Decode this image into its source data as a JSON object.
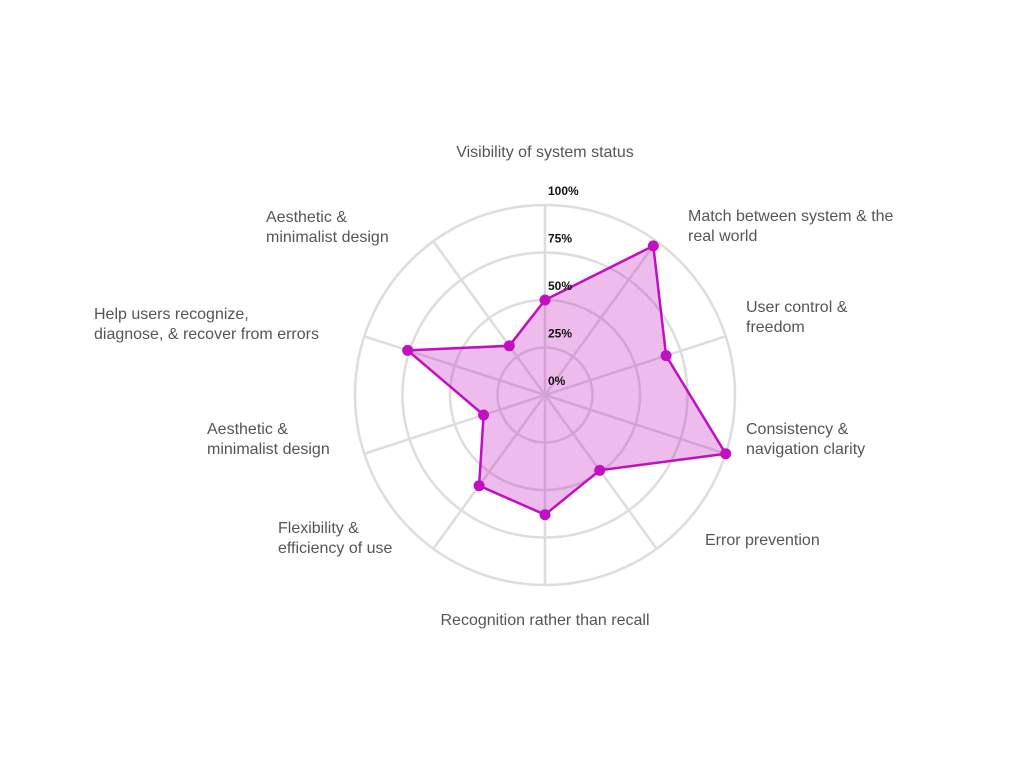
{
  "chart_data": {
    "type": "radar",
    "categories": [
      [
        "Visibility of system status"
      ],
      [
        "Match between system & the",
        "real world"
      ],
      [
        "User control &",
        "freedom"
      ],
      [
        "Consistency &",
        "navigation clarity"
      ],
      [
        "Error prevention"
      ],
      [
        "Recognition rather than recall"
      ],
      [
        "Flexibility &",
        "efficiency of use"
      ],
      [
        "Aesthetic &",
        "minimalist design"
      ],
      [
        "Help users recognize,",
        "diagnose, & recover from errors"
      ],
      [
        "Aesthetic &",
        "minimalist design"
      ]
    ],
    "values": [
      50,
      97,
      67,
      100,
      49,
      63,
      59,
      34,
      76,
      32
    ],
    "color": "#c010c0",
    "ylim": [
      0,
      100
    ],
    "yticks": [
      {
        "value": 0,
        "label": "0%"
      },
      {
        "value": 25,
        "label": "25%"
      },
      {
        "value": 50,
        "label": "50%"
      },
      {
        "value": 75,
        "label": "75%"
      },
      {
        "value": 100,
        "label": "100%"
      }
    ],
    "grid": true
  }
}
